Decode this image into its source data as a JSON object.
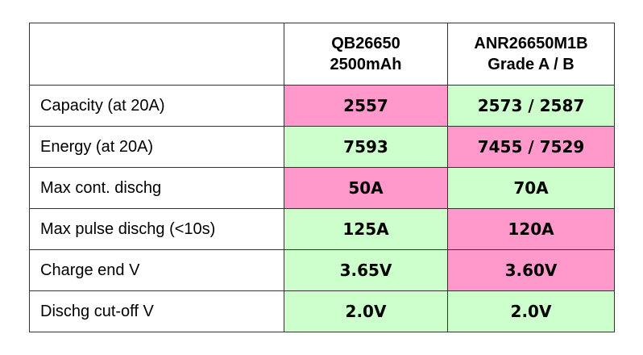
{
  "table": {
    "header": [
      [
        "QB26650",
        "2500mAh"
      ],
      [
        "ANR26650M1B",
        "Grade A / B"
      ]
    ],
    "rows": [
      [
        "Capacity (at 20A)",
        "2557",
        "2573 / 2587"
      ],
      [
        "Energy (at 20A)",
        "7593",
        "7455 / 7529"
      ],
      [
        "Max cont. dischg",
        "50A",
        "70A"
      ],
      [
        "Max pulse dischg (<10s)",
        "125A",
        "120A"
      ],
      [
        "Charge end V",
        "3.65V",
        "3.60V"
      ],
      [
        "Dischg cut-off V",
        "2.0V",
        "2.0V"
      ]
    ]
  }
}
